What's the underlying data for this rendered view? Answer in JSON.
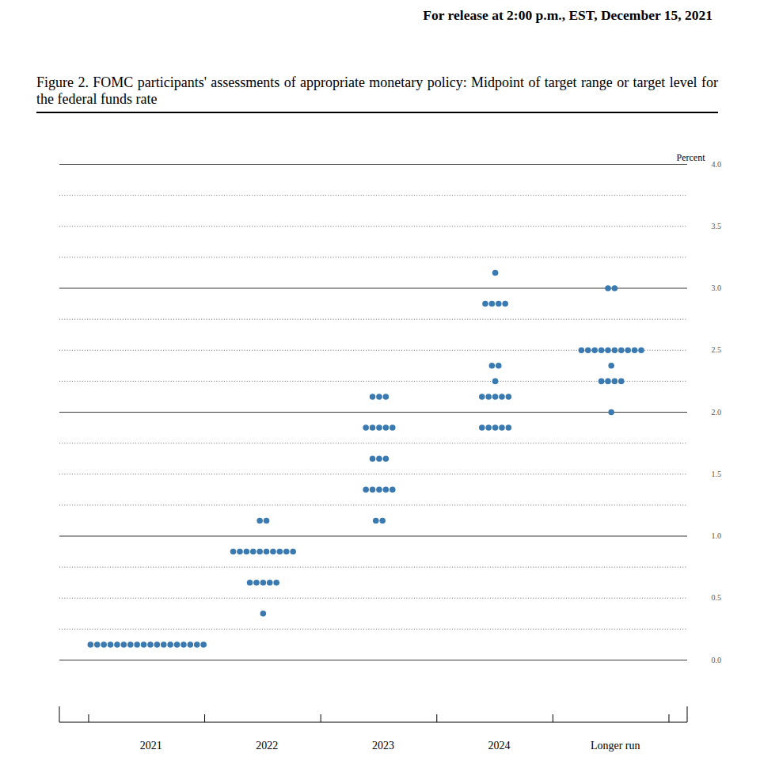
{
  "chart_data": {
    "type": "dot",
    "annotation": "For release at 2:00 p.m., EST, December 15, 2021",
    "title": "Figure 2.  FOMC participants' assessments of appropriate monetary policy: Midpoint of target range or target level for the federal funds rate",
    "y_label": "Percent",
    "categories": [
      "2021",
      "2022",
      "2023",
      "2024",
      "Longer run"
    ],
    "points": [
      {
        "category": "2021",
        "value": 0.125,
        "count": 18
      },
      {
        "category": "2022",
        "value": 1.125,
        "count": 2
      },
      {
        "category": "2022",
        "value": 0.875,
        "count": 10
      },
      {
        "category": "2022",
        "value": 0.625,
        "count": 5
      },
      {
        "category": "2022",
        "value": 0.375,
        "count": 1
      },
      {
        "category": "2023",
        "value": 2.125,
        "count": 3
      },
      {
        "category": "2023",
        "value": 1.875,
        "count": 5
      },
      {
        "category": "2023",
        "value": 1.625,
        "count": 3
      },
      {
        "category": "2023",
        "value": 1.375,
        "count": 5
      },
      {
        "category": "2023",
        "value": 1.125,
        "count": 2
      },
      {
        "category": "2024",
        "value": 3.125,
        "count": 1
      },
      {
        "category": "2024",
        "value": 2.875,
        "count": 4
      },
      {
        "category": "2024",
        "value": 2.375,
        "count": 2
      },
      {
        "category": "2024",
        "value": 2.25,
        "count": 1
      },
      {
        "category": "2024",
        "value": 2.125,
        "count": 5
      },
      {
        "category": "2024",
        "value": 1.875,
        "count": 5
      },
      {
        "category": "Longer run",
        "value": 3.0,
        "count": 2
      },
      {
        "category": "Longer run",
        "value": 2.5,
        "count": 10
      },
      {
        "category": "Longer run",
        "value": 2.375,
        "count": 1
      },
      {
        "category": "Longer run",
        "value": 2.25,
        "count": 4
      },
      {
        "category": "Longer run",
        "value": 2.0,
        "count": 1
      }
    ],
    "color": "#3b7ab1",
    "marker": "circle",
    "ylim": [
      0,
      4
    ],
    "yticks": [
      {
        "value": 0,
        "label": "0.0"
      },
      {
        "value": 0.5,
        "label": "0.5"
      },
      {
        "value": 1,
        "label": "1.0"
      },
      {
        "value": 1.5,
        "label": "1.5"
      },
      {
        "value": 2,
        "label": "2.0"
      },
      {
        "value": 2.5,
        "label": "2.5"
      },
      {
        "value": 3,
        "label": "3.0"
      },
      {
        "value": 3.5,
        "label": "3.5"
      },
      {
        "value": 4,
        "label": "4.0"
      }
    ],
    "grid": true
  }
}
